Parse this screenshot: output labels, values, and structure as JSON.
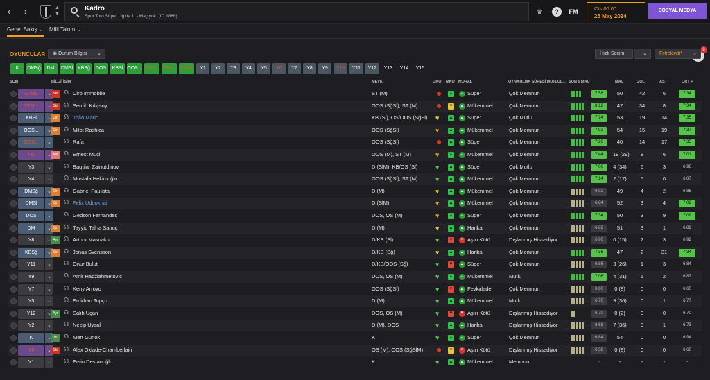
{
  "header": {
    "title": "Kadro",
    "subtitle": "Spor Toto Süper Lig'de 1. - Maç yok. (ID:1866)",
    "fm_label": "FM",
    "help_label": "?",
    "continue_label": "Cts 00:00",
    "date": "25 May 2024",
    "social_label": "SOSYAL MEDYA",
    "notif_count": "8"
  },
  "tabs": [
    {
      "label": "Genel Bakış"
    },
    {
      "label": "Milli Takım"
    }
  ],
  "section": {
    "title": "OYUNCULAR",
    "status_btn": "Durum Bilgisi",
    "quick_btn": "Hızlı Seçim",
    "filter_btn": "Filtrelendi*"
  },
  "positions": [
    {
      "label": "K",
      "color": "#2d9e3a",
      "text_color": "#fff"
    },
    {
      "label": "DMSğ",
      "color": "#2d9e3a",
      "text_color": "#fff"
    },
    {
      "label": "DM",
      "color": "#2d9e3a",
      "text_color": "#fff"
    },
    {
      "label": "DMSl",
      "color": "#2d9e3a",
      "text_color": "#fff"
    },
    {
      "label": "KBSğ",
      "color": "#2d9e3a",
      "text_color": "#fff"
    },
    {
      "label": "DOS",
      "color": "#2d9e3a",
      "text_color": "#fff"
    },
    {
      "label": "KBSl",
      "color": "#2d9e3a",
      "text_color": "#fff"
    },
    {
      "label": "OOS...",
      "color": "#2d9e3a",
      "text_color": "#fff"
    },
    {
      "label": "OOS...",
      "color": "#2d9e3a",
      "text_color": "#e05a3a"
    },
    {
      "label": "STM...",
      "color": "#2d9e3a",
      "text_color": "#e05a3a"
    },
    {
      "label": "STMS",
      "color": "#2d9e3a",
      "text_color": "#e05a3a"
    },
    {
      "label": "Y1",
      "color": "#4b5660",
      "text_color": "#fff"
    },
    {
      "label": "Y2",
      "color": "#4b5660",
      "text_color": "#fff"
    },
    {
      "label": "Y3",
      "color": "#4b5660",
      "text_color": "#fff"
    },
    {
      "label": "Y4",
      "color": "#4b5660",
      "text_color": "#fff"
    },
    {
      "label": "Y5",
      "color": "#4b5660",
      "text_color": "#fff"
    },
    {
      "label": "Y6",
      "color": "#4b5660",
      "text_color": "#e05a3a"
    },
    {
      "label": "Y7",
      "color": "#4b5660",
      "text_color": "#fff"
    },
    {
      "label": "Y8",
      "color": "#4b5660",
      "text_color": "#fff"
    },
    {
      "label": "Y9",
      "color": "#4b5660",
      "text_color": "#fff"
    },
    {
      "label": "Y10",
      "color": "#4b5660",
      "text_color": "#e05a3a"
    },
    {
      "label": "Y11",
      "color": "#4b5660",
      "text_color": "#fff"
    },
    {
      "label": "Y12",
      "color": "#4b5660",
      "text_color": "#fff"
    },
    {
      "label": "Y13",
      "color": "#1e1e22",
      "text_color": "#fff"
    },
    {
      "label": "Y14",
      "color": "#1e1e22",
      "text_color": "#fff"
    },
    {
      "label": "Y15",
      "color": "#1e1e22",
      "text_color": "#fff"
    }
  ],
  "columns": {
    "sec": "SÇM",
    "info": "BİLGİ",
    "name": "İSİM",
    "mevki": "MEVKİ",
    "gko": "GKO",
    "mko": "MKO",
    "moral": "MORAL",
    "oynatilma": "OYNATILMA SÜRESİ MUTLUL...",
    "son5": "SON 5 MAÇ",
    "mac": "MAÇ",
    "gol": "GOL",
    "ast": "AST",
    "ort": "ORT P"
  },
  "players": [
    {
      "sel": "STMS",
      "sel_bg": "#6a4a8a",
      "sel_fg": "#e05a3a",
      "tag": "Skt",
      "tag_bg": "#c0392b",
      "name": "Ciro Immobile",
      "link": false,
      "mevki": "ST (M)",
      "gko": "dot",
      "mko": "g",
      "moral": "Süper",
      "moral_c": "#2d9e3a",
      "oyn": "Çok Memnun",
      "form": [
        5,
        5,
        5,
        5
      ],
      "rating": "7.58",
      "rating_hi": true,
      "mac": "50",
      "gol": "42",
      "ast": "6",
      "ort": "7.34",
      "ort_hi": true
    },
    {
      "sel": "STM...",
      "sel_bg": "#6a4a8a",
      "sel_fg": "#e05a3a",
      "tag": "Skt",
      "tag_bg": "#c0392b",
      "name": "Semih Kılıçsoy",
      "link": false,
      "mevki": "OOS (SğSl), ST (M)",
      "gko": "dot",
      "mko": "y",
      "moral": "Mükemmel",
      "moral_c": "#2d9e3a",
      "oyn": "Çok Memnun",
      "form": [
        5,
        5,
        5,
        5,
        5
      ],
      "rating": "8.12",
      "rating_hi": true,
      "mac": "47",
      "gol": "34",
      "ast": "8",
      "ort": "7.34",
      "ort_hi": true
    },
    {
      "sel": "KBSl",
      "sel_bg": "#4b5d75",
      "sel_fg": "#fff",
      "tag": "Din",
      "tag_bg": "#d8813a",
      "name": "João Mário",
      "link": true,
      "mevki": "KB (Sl), OS/OOS (SğSl)",
      "gko": "heart-y",
      "mko": "g",
      "moral": "Süper",
      "moral_c": "#2d9e3a",
      "oyn": "Çok Mutlu",
      "form": [
        5,
        5,
        5,
        5,
        5
      ],
      "rating": "7.74",
      "rating_hi": true,
      "mac": "53",
      "gol": "19",
      "ast": "14",
      "ort": "7.35",
      "ort_hi": true
    },
    {
      "sel": "OOS...",
      "sel_bg": "#4b5d75",
      "sel_fg": "#fff",
      "tag": "Din",
      "tag_bg": "#d8813a",
      "name": "Milot Rashica",
      "link": false,
      "mevki": "OOS (SğSl)",
      "gko": "heart-o",
      "mko": "g",
      "moral": "Mükemmel",
      "moral_c": "#2d9e3a",
      "oyn": "Çok Memnun",
      "form": [
        5,
        5,
        5,
        5,
        5
      ],
      "rating": "7.92",
      "rating_hi": true,
      "mac": "54",
      "gol": "15",
      "ast": "19",
      "ort": "7.37",
      "ort_hi": true
    },
    {
      "sel": "OOS...",
      "sel_bg": "#4b5d75",
      "sel_fg": "#e05a3a",
      "tag": "",
      "tag_bg": "",
      "name": "Rafa",
      "link": false,
      "mevki": "OOS (SğSl)",
      "gko": "dot",
      "mko": "g",
      "moral": "Süper",
      "moral_c": "#2d9e3a",
      "oyn": "Çok Memnun",
      "form": [
        5,
        5,
        5,
        5,
        5
      ],
      "rating": "7.20",
      "rating_hi": true,
      "mac": "40",
      "gol": "14",
      "ast": "17",
      "ort": "7.35",
      "ort_hi": true
    },
    {
      "sel": "Y10",
      "sel_bg": "#6a4a8a",
      "sel_fg": "#e05a3a",
      "tag": "Mil",
      "tag_bg": "#e07a7a",
      "name": "Ernest Muçi",
      "link": false,
      "mevki": "OOS (M), ST (M)",
      "gko": "heart-o",
      "mko": "g",
      "moral": "Mükemmel",
      "moral_c": "#2d9e3a",
      "oyn": "Çok Memnun",
      "form": [
        5,
        5,
        5,
        5,
        5
      ],
      "rating": "7.44",
      "rating_hi": true,
      "mac": "19 (29)",
      "gol": "8",
      "ast": "6",
      "ort": "7.01",
      "ort_hi": true
    },
    {
      "sel": "Y3",
      "sel_bg": "#3b3b40",
      "sel_fg": "#fff",
      "tag": "",
      "tag_bg": "",
      "name": "Baqtiiar Zainutdinov",
      "link": false,
      "mevki": "D (SlM), KB/OS (Sl)",
      "gko": "heart-g",
      "mko": "g",
      "moral": "Süper",
      "moral_c": "#2d9e3a",
      "oyn": "Çok Mutlu",
      "form": [
        5,
        5,
        5,
        5,
        5
      ],
      "rating": "7.06",
      "rating_hi": true,
      "mac": "4 (34)",
      "gol": "6",
      "ast": "3",
      "ort": "6.96",
      "ort_hi": false
    },
    {
      "sel": "Y4",
      "sel_bg": "#3b3b40",
      "sel_fg": "#fff",
      "tag": "",
      "tag_bg": "",
      "name": "Mustafa Hekimoğlu",
      "link": false,
      "mevki": "OOS (SğSl), ST (M)",
      "gko": "heart-g",
      "mko": "g",
      "moral": "Mükemmel",
      "moral_c": "#2d9e3a",
      "oyn": "Çok Memnun",
      "form": [
        5,
        5,
        5,
        5,
        5
      ],
      "rating": "7.14",
      "rating_hi": true,
      "mac": "2 (17)",
      "gol": "5",
      "ast": "0",
      "ort": "6.87",
      "ort_hi": false
    },
    {
      "sel": "DMSğ",
      "sel_bg": "#4b5d75",
      "sel_fg": "#fff",
      "tag": "Din",
      "tag_bg": "#d8813a",
      "name": "Gabriel Paulista",
      "link": false,
      "mevki": "D (M)",
      "gko": "heart-y",
      "mko": "g",
      "moral": "Mükemmel",
      "moral_c": "#2d9e3a",
      "oyn": "Çok Memnun",
      "form": [
        3,
        3,
        3,
        3,
        3
      ],
      "rating": "6.92",
      "rating_hi": false,
      "mac": "49",
      "gol": "4",
      "ast": "2",
      "ort": "6.86",
      "ort_hi": false
    },
    {
      "sel": "DMSl",
      "sel_bg": "#4b5d75",
      "sel_fg": "#fff",
      "tag": "Din",
      "tag_bg": "#d8813a",
      "name": "Felix Uduokhai",
      "link": true,
      "mevki": "D (SlM)",
      "gko": "heart-o",
      "mko": "g",
      "moral": "Mükemmel",
      "moral_c": "#2d9e3a",
      "oyn": "Çok Memnun",
      "form": [
        3,
        3,
        3,
        3,
        3
      ],
      "rating": "6.84",
      "rating_hi": false,
      "mac": "52",
      "gol": "3",
      "ast": "4",
      "ort": "7.02",
      "ort_hi": true
    },
    {
      "sel": "DOS",
      "sel_bg": "#4b5d75",
      "sel_fg": "#fff",
      "tag": "",
      "tag_bg": "",
      "name": "Gedson Fernandes",
      "link": false,
      "mevki": "DOS, OS (M)",
      "gko": "heart-o",
      "mko": "g",
      "moral": "Süper",
      "moral_c": "#2d9e3a",
      "oyn": "Çok Memnun",
      "form": [
        5,
        5,
        5,
        5,
        5
      ],
      "rating": "7.34",
      "rating_hi": true,
      "mac": "50",
      "gol": "3",
      "ast": "9",
      "ort": "7.09",
      "ort_hi": true
    },
    {
      "sel": "DM",
      "sel_bg": "#4b5d75",
      "sel_fg": "#fff",
      "tag": "Din",
      "tag_bg": "#d8813a",
      "name": "Tayyip Talha Sanuç",
      "link": false,
      "mevki": "D (M)",
      "gko": "heart-y",
      "mko": "g",
      "moral": "Harika",
      "moral_c": "#2d9e3a",
      "oyn": "Çok Memnun",
      "form": [
        3,
        3,
        3,
        3,
        3
      ],
      "rating": "6.82",
      "rating_hi": false,
      "mac": "51",
      "gol": "3",
      "ast": "1",
      "ort": "6.89",
      "ort_hi": false
    },
    {
      "sel": "Y8",
      "sel_bg": "#3b3b40",
      "sel_fg": "#fff",
      "tag": "Ayr",
      "tag_bg": "#4a8a4a",
      "name": "Arthur Masuaku",
      "link": false,
      "mevki": "D/KB (Sl)",
      "gko": "heart-g",
      "mko": "r",
      "moral": "Aşırı Kötü",
      "moral_c": "#d33",
      "oyn": "Dışlanmış Hissediyor",
      "form": [
        3,
        3,
        3,
        3,
        3
      ],
      "rating": "6.90",
      "rating_hi": false,
      "mac": "0 (15)",
      "gol": "2",
      "ast": "3",
      "ort": "6.92",
      "ort_hi": false
    },
    {
      "sel": "KBSğ",
      "sel_bg": "#4b5d75",
      "sel_fg": "#fff",
      "tag": "Din",
      "tag_bg": "#d8813a",
      "name": "Jonas Svensson",
      "link": false,
      "mevki": "D/KB (Sğ)",
      "gko": "heart-y",
      "mko": "g",
      "moral": "Harika",
      "moral_c": "#2d9e3a",
      "oyn": "Çok Memnun",
      "form": [
        5,
        5,
        5,
        5,
        5
      ],
      "rating": "7.36",
      "rating_hi": true,
      "mac": "47",
      "gol": "2",
      "ast": "31",
      "ort": "7.34",
      "ort_hi": true
    },
    {
      "sel": "Y11",
      "sel_bg": "#3b3b40",
      "sel_fg": "#fff",
      "tag": "",
      "tag_bg": "",
      "name": "Onur Bulut",
      "link": false,
      "mevki": "D/KB/OOS (Sğ)",
      "gko": "heart-g",
      "mko": "r",
      "moral": "Süper",
      "moral_c": "#2d9e3a",
      "oyn": "Çok Memnun",
      "form": [
        3,
        3,
        3,
        3,
        3
      ],
      "rating": "6.86",
      "rating_hi": false,
      "mac": "3 (26)",
      "gol": "1",
      "ast": "3",
      "ort": "6.84",
      "ort_hi": false
    },
    {
      "sel": "Y9",
      "sel_bg": "#3b3b40",
      "sel_fg": "#fff",
      "tag": "",
      "tag_bg": "",
      "name": "Amir Hadžiahmetović",
      "link": false,
      "mevki": "DOS, OS (M)",
      "gko": "heart-g",
      "mko": "g",
      "moral": "Mükemmel",
      "moral_c": "#2d9e3a",
      "oyn": "Mutlu",
      "form": [
        5,
        5,
        5,
        5,
        5
      ],
      "rating": "7.06",
      "rating_hi": true,
      "mac": "4 (31)",
      "gol": "1",
      "ast": "2",
      "ort": "6.87",
      "ort_hi": false
    },
    {
      "sel": "Y7",
      "sel_bg": "#3b3b40",
      "sel_fg": "#fff",
      "tag": "",
      "tag_bg": "",
      "name": "Keny Arroyo",
      "link": false,
      "mevki": "OOS (SğSl)",
      "gko": "heart-g",
      "mko": "r",
      "moral": "Fevkalade",
      "moral_c": "#2d9e3a",
      "oyn": "Çok Memnun",
      "form": [
        3,
        3,
        3,
        3,
        3
      ],
      "rating": "6.60",
      "rating_hi": false,
      "mac": "0 (8)",
      "gol": "0",
      "ast": "0",
      "ort": "6.60",
      "ort_hi": false
    },
    {
      "sel": "Y5",
      "sel_bg": "#3b3b40",
      "sel_fg": "#fff",
      "tag": "",
      "tag_bg": "",
      "name": "Emirhan Topçu",
      "link": false,
      "mevki": "D (M)",
      "gko": "heart-g",
      "mko": "g",
      "moral": "Mükemmel",
      "moral_c": "#2d9e3a",
      "oyn": "Mutlu",
      "form": [
        3,
        3,
        3,
        3,
        3
      ],
      "rating": "6.70",
      "rating_hi": false,
      "mac": "3 (36)",
      "gol": "0",
      "ast": "1",
      "ort": "6.77",
      "ort_hi": false
    },
    {
      "sel": "Y12",
      "sel_bg": "#3b3b40",
      "sel_fg": "#fff",
      "tag": "Ayr",
      "tag_bg": "#4a8a4a",
      "name": "Salih Uçan",
      "link": false,
      "mevki": "DOS, OS (M)",
      "gko": "heart-g",
      "mko": "r",
      "moral": "Aşırı Kötü",
      "moral_c": "#d33",
      "oyn": "Dışlanmış Hissediyor",
      "form": [
        3,
        3
      ],
      "rating": "6.70",
      "rating_hi": false,
      "mac": "0 (2)",
      "gol": "0",
      "ast": "0",
      "ort": "6.70",
      "ort_hi": false
    },
    {
      "sel": "Y2",
      "sel_bg": "#3b3b40",
      "sel_fg": "#fff",
      "tag": "",
      "tag_bg": "",
      "name": "Necip Uysal",
      "link": false,
      "mevki": "D (M), DOS",
      "gko": "heart-g",
      "mko": "g",
      "moral": "Harika",
      "moral_c": "#2d9e3a",
      "oyn": "Dışlanmış Hissediyor",
      "form": [
        3,
        3,
        3,
        3,
        3
      ],
      "rating": "6.68",
      "rating_hi": false,
      "mac": "7 (36)",
      "gol": "0",
      "ast": "1",
      "ort": "6.73",
      "ort_hi": false
    },
    {
      "sel": "K",
      "sel_bg": "#4b5d75",
      "sel_fg": "#fff",
      "tag": "İzi",
      "tag_bg": "#4a8a4a",
      "name": "Mert Günok",
      "link": false,
      "mevki": "K",
      "gko": "heart-g",
      "mko": "g",
      "moral": "Süper",
      "moral_c": "#2d9e3a",
      "oyn": "Çok Memnun",
      "form": [
        3,
        3,
        3,
        3,
        3
      ],
      "rating": "6.84",
      "rating_hi": false,
      "mac": "54",
      "gol": "0",
      "ast": "0",
      "ort": "6.94",
      "ort_hi": false
    },
    {
      "sel": "Y6",
      "sel_bg": "#6a4a8a",
      "sel_fg": "#e05a3a",
      "tag": "Skt",
      "tag_bg": "#c0392b",
      "name": "Alex Oxlade-Chamberlain",
      "link": false,
      "mevki": "OS (M), OOS (SğSlM)",
      "gko": "dot",
      "mko": "y",
      "moral": "Aşırı Kötü",
      "moral_c": "#d33",
      "oyn": "Dışlanmış Hissediyor",
      "form": [
        3,
        3,
        3,
        3,
        3
      ],
      "rating": "6.58",
      "rating_hi": false,
      "mac": "0 (8)",
      "gol": "0",
      "ast": "0",
      "ort": "6.60",
      "ort_hi": false
    },
    {
      "sel": "Y1",
      "sel_bg": "#3b3b40",
      "sel_fg": "#fff",
      "tag": "",
      "tag_bg": "",
      "name": "Ersin Destanoğlu",
      "link": false,
      "mevki": "K",
      "gko": "heart-g",
      "mko": "g",
      "moral": "Mükemmel",
      "moral_c": "#2d9e3a",
      "oyn": "Memnun",
      "form": [],
      "rating": "-",
      "rating_hi": false,
      "mac": "-",
      "gol": "-",
      "ast": "-",
      "ort": "-",
      "ort_hi": false
    }
  ]
}
